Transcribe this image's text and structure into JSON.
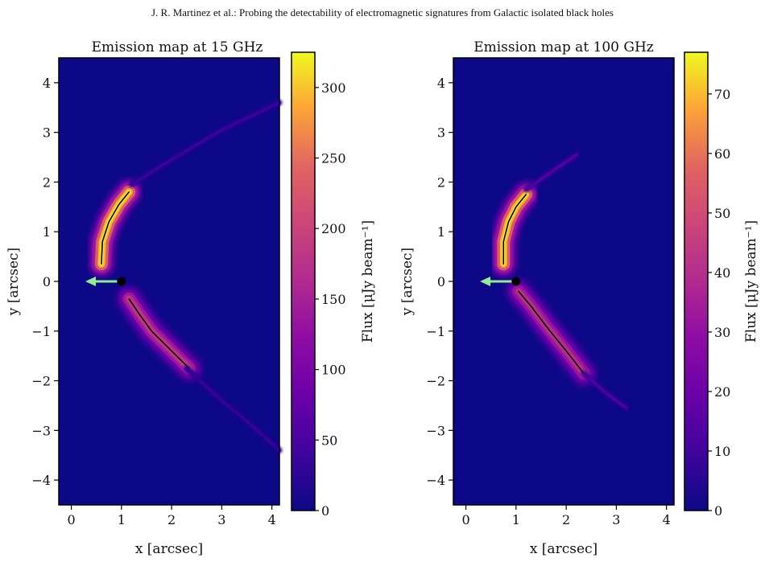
{
  "header": {
    "running_title": "J. R. Martinez  et al.: Probing the detectability of electromagnetic signatures from Galactic isolated black holes"
  },
  "colors": {
    "map_background": "#0d0887",
    "velocity_arrow": "#90ee90",
    "source_marker": "#000000",
    "colormap": "plasma"
  },
  "chart_data": [
    {
      "type": "heatmap",
      "title": "Emission map at 15 GHz",
      "xlabel": "x [arcsec]",
      "ylabel": "y [arcsec]",
      "xlim": [
        -0.25,
        4.15
      ],
      "ylim": [
        -4.5,
        4.5
      ],
      "xticks": [
        0,
        1,
        2,
        3,
        4
      ],
      "xtick_labels": [
        "0",
        "1",
        "2",
        "3",
        "4"
      ],
      "yticks": [
        -4,
        -3,
        -2,
        -1,
        0,
        1,
        2,
        3,
        4
      ],
      "ytick_labels": [
        "−4",
        "−3",
        "−2",
        "−1",
        "0",
        "1",
        "2",
        "3",
        "4"
      ],
      "colorbar": {
        "label": "Flux [μJy beam⁻¹]",
        "range": [
          0,
          325
        ],
        "ticks": [
          0,
          50,
          100,
          150,
          200,
          250,
          300
        ],
        "tick_labels": [
          "0",
          "50",
          "100",
          "150",
          "200",
          "250",
          "300"
        ]
      },
      "source": {
        "x": 1.0,
        "y": 0.0
      },
      "velocity_arrow": {
        "from": [
          1.0,
          0.0
        ],
        "to": [
          0.28,
          0.0
        ]
      },
      "features": [
        {
          "name": "upper lobe",
          "points": [
            [
              0.6,
              0.35
            ],
            [
              0.62,
              0.8
            ],
            [
              0.75,
              1.2
            ],
            [
              0.95,
              1.55
            ],
            [
              1.15,
              1.8
            ]
          ],
          "peak": 320
        },
        {
          "name": "lower lobe",
          "points": [
            [
              1.15,
              -0.35
            ],
            [
              1.35,
              -0.65
            ],
            [
              1.6,
              -1.0
            ],
            [
              1.9,
              -1.3
            ],
            [
              2.35,
              -1.75
            ]
          ],
          "peak": 180
        },
        {
          "name": "upper wing",
          "points": [
            [
              1.2,
              1.95
            ],
            [
              2.0,
              2.45
            ],
            [
              3.0,
              3.05
            ],
            [
              4.15,
              3.6
            ]
          ],
          "peak": 25
        },
        {
          "name": "lower wing",
          "points": [
            [
              2.3,
              -1.75
            ],
            [
              3.0,
              -2.4
            ],
            [
              3.6,
              -2.9
            ],
            [
              4.15,
              -3.4
            ]
          ],
          "peak": 20
        }
      ]
    },
    {
      "type": "heatmap",
      "title": "Emission map at 100 GHz",
      "xlabel": "x [arcsec]",
      "ylabel": "y [arcsec]",
      "xlim": [
        -0.25,
        4.15
      ],
      "ylim": [
        -4.5,
        4.5
      ],
      "xticks": [
        0,
        1,
        2,
        3,
        4
      ],
      "xtick_labels": [
        "0",
        "1",
        "2",
        "3",
        "4"
      ],
      "yticks": [
        -4,
        -3,
        -2,
        -1,
        0,
        1,
        2,
        3,
        4
      ],
      "ytick_labels": [
        "−4",
        "−3",
        "−2",
        "−1",
        "0",
        "1",
        "2",
        "3",
        "4"
      ],
      "colorbar": {
        "label": "Flux [μJy beam⁻¹]",
        "range": [
          0,
          77
        ],
        "ticks": [
          0,
          10,
          20,
          30,
          40,
          50,
          60,
          70
        ],
        "tick_labels": [
          "0",
          "10",
          "20",
          "30",
          "40",
          "50",
          "60",
          "70"
        ]
      },
      "source": {
        "x": 1.0,
        "y": 0.0
      },
      "velocity_arrow": {
        "from": [
          1.0,
          0.0
        ],
        "to": [
          0.28,
          0.0
        ]
      },
      "features": [
        {
          "name": "upper lobe",
          "points": [
            [
              0.75,
              0.35
            ],
            [
              0.75,
              0.8
            ],
            [
              0.85,
              1.2
            ],
            [
              1.0,
              1.5
            ],
            [
              1.2,
              1.75
            ]
          ],
          "peak": 75
        },
        {
          "name": "lower lobe",
          "points": [
            [
              1.05,
              -0.2
            ],
            [
              1.3,
              -0.5
            ],
            [
              1.6,
              -0.9
            ],
            [
              2.0,
              -1.4
            ],
            [
              2.35,
              -1.85
            ]
          ],
          "peak": 40
        },
        {
          "name": "upper wing",
          "points": [
            [
              1.2,
              1.85
            ],
            [
              1.7,
              2.2
            ],
            [
              2.2,
              2.55
            ]
          ],
          "peak": 12
        },
        {
          "name": "lower wing",
          "points": [
            [
              2.35,
              -1.85
            ],
            [
              2.8,
              -2.25
            ],
            [
              3.2,
              -2.55
            ]
          ],
          "peak": 10
        }
      ]
    }
  ]
}
